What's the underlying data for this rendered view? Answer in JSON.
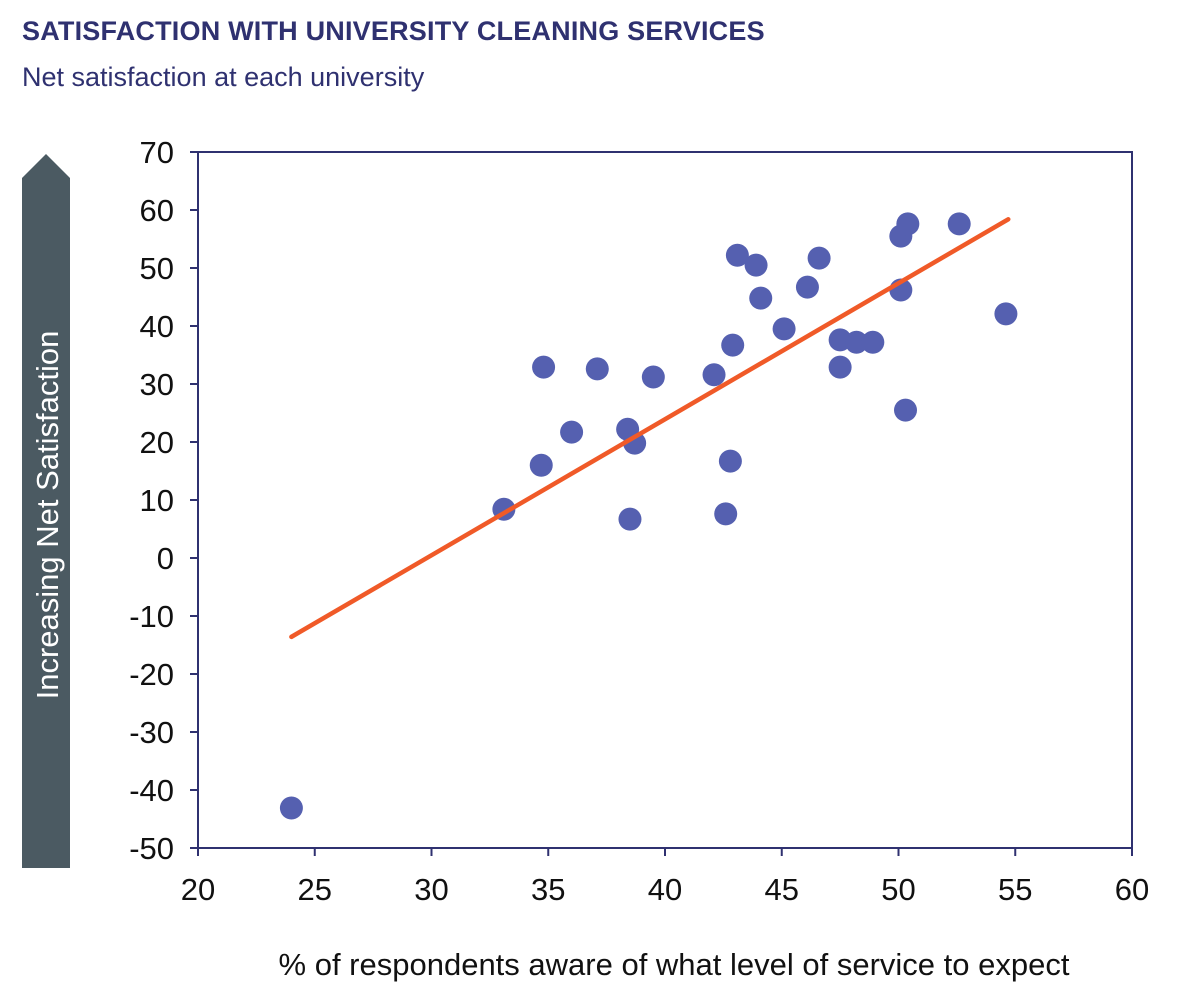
{
  "chart_data": {
    "type": "scatter",
    "title": "SATISFACTION WITH UNIVERSITY CLEANING SERVICES",
    "subtitle": "Net satisfaction at each university",
    "xlabel": "% of respondents aware of what level of service to expect",
    "ylabel": "Increasing Net Satisfaction",
    "xlim": [
      20,
      60
    ],
    "ylim": [
      -50,
      70
    ],
    "xticks": [
      "20",
      "25",
      "30",
      "35",
      "40",
      "45",
      "50",
      "55",
      "60"
    ],
    "yticks": [
      "70",
      "60",
      "50",
      "40",
      "30",
      "20",
      "10",
      "0",
      "-10",
      "-20",
      "-30",
      "-40",
      "-50"
    ],
    "grid": false,
    "legend": "none",
    "colors": {
      "points": "#5560b0",
      "trendline": "#f05a28",
      "ylabel_arrow": "#4b5a62",
      "title": "#2f3170"
    },
    "points": [
      [
        24.0,
        -43.1
      ],
      [
        33.1,
        8.4
      ],
      [
        34.7,
        16.0
      ],
      [
        34.8,
        32.9
      ],
      [
        36.0,
        21.7
      ],
      [
        37.1,
        32.6
      ],
      [
        38.4,
        22.2
      ],
      [
        38.7,
        19.8
      ],
      [
        38.5,
        6.7
      ],
      [
        39.5,
        31.2
      ],
      [
        42.1,
        31.6
      ],
      [
        42.6,
        7.6
      ],
      [
        42.8,
        16.7
      ],
      [
        42.9,
        36.7
      ],
      [
        43.1,
        52.2
      ],
      [
        43.9,
        50.5
      ],
      [
        44.1,
        44.8
      ],
      [
        45.1,
        39.5
      ],
      [
        46.1,
        46.7
      ],
      [
        46.6,
        51.7
      ],
      [
        47.5,
        37.6
      ],
      [
        47.5,
        32.9
      ],
      [
        48.2,
        37.2
      ],
      [
        48.9,
        37.2
      ],
      [
        50.1,
        55.5
      ],
      [
        50.4,
        57.6
      ],
      [
        50.1,
        46.2
      ],
      [
        50.3,
        25.5
      ],
      [
        52.6,
        57.6
      ],
      [
        54.6,
        42.1
      ]
    ],
    "trendline": {
      "x": [
        24.0,
        54.7
      ],
      "y": [
        -13.6,
        58.4
      ]
    }
  }
}
